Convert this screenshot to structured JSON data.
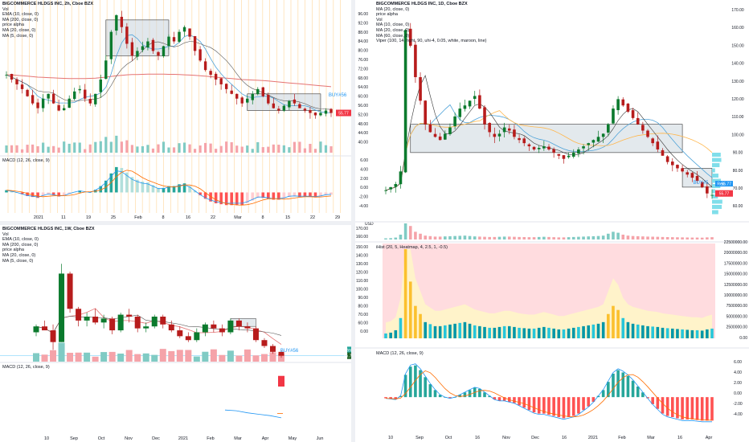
{
  "panels": [
    {
      "id": "p1",
      "title": "BIGCOMMERCE HLDGS INC, 2h, Cboe BZX",
      "legend": [
        "Vol",
        "EMA (10, close, 0)",
        "MA (200, close, 0)",
        "price alpha",
        "MA (20, close, 0)",
        "MA (5, close, 0)"
      ],
      "macd_label": "MACD (12, 26, close, 9)",
      "x_ticks": [
        "2021",
        "11",
        "19",
        "25",
        "Feb",
        "8",
        "16",
        "22",
        "Mar",
        "8",
        "15",
        "22",
        "29"
      ],
      "signal": "BUY#56",
      "last_price": "55.77"
    },
    {
      "id": "p2",
      "title": "BIGCOMMERCE HLDGS INC, 1D, Cboe BZX",
      "legend": [
        "MA (20, close, 0)",
        "price alpha",
        "Vol",
        "MA (10, close, 0)",
        "MA (20, close, 0)",
        "MA (60, close, 0)",
        "Viper (100, 14, right, 90, uhi-4, 0.05, white, maroon, line)"
      ],
      "macd_label": "MACD (12, 26, close, 9)",
      "osc_label": "iHist (20, 5, Heatmap, 4, 2.5, 1, -0.5)",
      "x_ticks": [
        "10",
        "Sep",
        "Oct",
        "16",
        "Nov",
        "Dec",
        "16",
        "2021",
        "Feb",
        "Mar",
        "16",
        "Apr"
      ],
      "left_axis": [
        "96.00",
        "92.00",
        "88.00",
        "84.00",
        "80.00",
        "76.00",
        "72.00",
        "68.00",
        "64.00",
        "60.00",
        "56.00",
        "52.00",
        "48.00",
        "44.00",
        "40.00",
        "6.00",
        "4.00",
        "2.00",
        "0.00",
        "-2.00",
        "-4.00"
      ],
      "right_axis": [
        "170.00",
        "160.00",
        "150.00",
        "140.00",
        "130.00",
        "120.00",
        "110.00",
        "100.00",
        "90.00",
        "80.00",
        "70.00",
        "60.00"
      ],
      "vol_right_axis": [
        "22500000.00",
        "20000000.00",
        "17500000.00",
        "15000000.00",
        "12500000.00",
        "10000000.00",
        "7500000.00",
        "5000000.00",
        "2500000.00",
        "0.00"
      ],
      "vol_left_axis": [
        "170.00",
        "160.00",
        "150.00",
        "140.00",
        "130.00",
        "120.00",
        "110.00",
        "100.00",
        "90.00",
        "80.00",
        "70.00",
        "60.00",
        "0.00"
      ],
      "macd_axis": [
        "6.00",
        "4.00",
        "2.00",
        "0.00",
        "-2.00",
        "-4.00"
      ],
      "signal": "BUY#5",
      "tag_red": "Red",
      "last_price": "55.77",
      "tag_price2": "55.77",
      "usd": "USD"
    },
    {
      "id": "p3",
      "title": "BIGCOMMERCE HLDGS INC, 1W, Cboe BZX",
      "legend": [
        "Vol",
        "EMA (10, close, 0)",
        "MA (200, close, 0)",
        "price alpha",
        "MA (20, close, 0)",
        "MA (5, close, 0)"
      ],
      "macd_label": "MACD (12, 26, close, 9)",
      "x_ticks": [
        "10",
        "Sep",
        "Oct",
        "Nov",
        "Dec",
        "2021",
        "Feb",
        "Mar",
        "Apr",
        "May",
        "Jun"
      ],
      "macd_axis": [
        "0.00",
        "-2.00",
        "-4.00",
        "-6.00",
        "-8.00"
      ],
      "signal": "BUY#56",
      "tag_red": "Red",
      "last_price": "55.77"
    }
  ],
  "colors": {
    "up": "#089981",
    "down": "#f23645",
    "up_solid": "#0b7a2d",
    "down_solid": "#b71c1c",
    "ma_red": "#e57373",
    "ma_blue": "#4fa3d9",
    "ma_orange": "#f5a623",
    "grid": "#f0f3fa",
    "box_fill": "#c8d3dc",
    "macd_line": "#2196f3",
    "signal_line": "#ff6d00",
    "heat_bg": "#ffcdd2",
    "signal_text": "#2196f3"
  },
  "chart_data": [
    {
      "panel": "2h",
      "type": "candlestick",
      "title": "BIGCOMMERCE HLDGS INC, 2h, Cboe BZX",
      "close": [
        72,
        70,
        68,
        66,
        63,
        60,
        58,
        62,
        64,
        60,
        57,
        58,
        62,
        65,
        66,
        62,
        60,
        64,
        70,
        78,
        90,
        97,
        92,
        85,
        80,
        82,
        84,
        86,
        82,
        80,
        84,
        88,
        86,
        90,
        92,
        88,
        82,
        78,
        74,
        72,
        70,
        68,
        66,
        64,
        62,
        60,
        62,
        64,
        66,
        63,
        60,
        58,
        57,
        59,
        61,
        60,
        58,
        57,
        56,
        55,
        56,
        57,
        56
      ],
      "ma200": [
        72,
        72,
        71.8,
        71.6,
        71.4,
        71.2,
        71,
        70.9,
        70.8,
        70.7,
        70.6,
        70.5,
        70.4,
        70.4,
        70.4,
        70.4,
        70.5,
        70.6,
        70.8,
        71,
        71.3,
        71.6,
        71.8,
        72,
        72.1,
        72.1,
        72.2,
        72.3,
        72.3,
        72.3,
        72.3,
        72.2,
        72.2,
        72.1,
        72,
        71.9,
        71.8,
        71.6,
        71.4,
        71.2,
        71,
        70.8,
        70.6,
        70.4,
        70.2,
        70,
        69.9,
        69.8,
        69.7,
        69.6,
        69.4,
        69.2,
        69,
        68.8,
        68.6,
        68.4,
        68.2,
        68,
        67.8,
        67.6,
        67.4,
        67.2,
        67
      ],
      "macd": [
        0.5,
        0.3,
        0,
        -0.4,
        -0.8,
        -1,
        -1.2,
        -0.8,
        -0.4,
        -0.6,
        -0.9,
        -0.8,
        -0.3,
        0.1,
        0.4,
        0.2,
        0,
        0.6,
        1.4,
        2.6,
        4.2,
        5.6,
        5.4,
        4.4,
        3.4,
        2.8,
        2.4,
        2.2,
        1.6,
        1,
        1,
        1.4,
        1.4,
        1.8,
        2,
        1.4,
        0.4,
        -0.6,
        -1.4,
        -2,
        -2.4,
        -2.6,
        -2.8,
        -2.8,
        -2.8,
        -2.8,
        -2.4,
        -1.8,
        -1.2,
        -1.2,
        -1.4,
        -1.6,
        -1.6,
        -1.4,
        -1,
        -0.9,
        -1,
        -1,
        -1,
        -1.1,
        -0.9,
        -0.6,
        -0.5
      ]
    },
    {
      "panel": "1D",
      "type": "candlestick",
      "title": "BIGCOMMERCE HLDGS INC, 1D, Cboe BZX",
      "close": [
        58,
        60,
        62,
        70,
        160,
        150,
        130,
        115,
        100,
        95,
        92,
        90,
        94,
        98,
        105,
        110,
        112,
        115,
        118,
        110,
        100,
        95,
        92,
        94,
        98,
        96,
        92,
        90,
        88,
        86,
        84,
        85,
        86,
        84,
        82,
        80,
        78,
        80,
        82,
        84,
        86,
        88,
        90,
        92,
        94,
        100,
        110,
        116,
        112,
        108,
        104,
        100,
        96,
        92,
        88,
        84,
        80,
        76,
        74,
        72,
        70,
        68,
        66,
        64,
        60,
        56,
        55
      ],
      "volume_m": [
        1.2,
        1.4,
        2,
        5,
        22,
        14,
        8,
        6,
        4,
        3.5,
        3,
        3,
        3.2,
        3.4,
        3.6,
        3.8,
        4,
        3.6,
        3.2,
        3,
        2.8,
        2.6,
        2.6,
        2.8,
        3,
        3,
        2.8,
        2.6,
        2.5,
        2.4,
        2.4,
        2.6,
        2.8,
        2.6,
        2.4,
        2.2,
        2.2,
        2.4,
        2.6,
        2.8,
        3,
        3.2,
        3.4,
        3.6,
        4,
        6,
        8,
        7,
        5,
        4,
        3.6,
        3.4,
        3.2,
        3,
        2.9,
        2.8,
        2.6,
        2.5,
        2.4,
        2.3,
        2.2,
        2.1,
        2,
        2,
        1.9,
        2.2,
        2.4
      ],
      "macd": [
        -0.2,
        -0.3,
        -0.4,
        0.2,
        3.8,
        5.2,
        5.4,
        4.6,
        3.4,
        2.2,
        1.2,
        0.4,
        0,
        -0.2,
        0,
        0.4,
        0.8,
        1.2,
        1.6,
        1.4,
        0.8,
        0.2,
        -0.4,
        -0.6,
        -0.6,
        -0.8,
        -1,
        -1.4,
        -1.8,
        -2.2,
        -2.6,
        -2.8,
        -2.8,
        -3,
        -3.2,
        -3.4,
        -3.6,
        -3.4,
        -3.2,
        -2.8,
        -2.2,
        -1.6,
        -0.8,
        0.2,
        1.2,
        2.6,
        4,
        4.6,
        4.2,
        3.6,
        2.8,
        1.8,
        0.8,
        -0.2,
        -1.2,
        -2,
        -2.8,
        -3.2,
        -3.4,
        -3.6,
        -3.8,
        -3.8,
        -3.8,
        -3.9,
        -4,
        -4,
        -4
      ]
    },
    {
      "panel": "1W",
      "type": "candlestick",
      "title": "BIGCOMMERCE HLDGS INC, 1W, Cboe BZX",
      "ohlc": [
        [
          80,
          88,
          76,
          86
        ],
        [
          86,
          92,
          82,
          82
        ],
        [
          82,
          88,
          62,
          70
        ],
        [
          70,
          150,
          70,
          140
        ],
        [
          140,
          142,
          100,
          104
        ],
        [
          104,
          106,
          86,
          92
        ],
        [
          92,
          100,
          86,
          96
        ],
        [
          96,
          104,
          88,
          90
        ],
        [
          90,
          98,
          84,
          94
        ],
        [
          94,
          96,
          78,
          82
        ],
        [
          82,
          100,
          80,
          98
        ],
        [
          98,
          104,
          90,
          96
        ],
        [
          96,
          98,
          80,
          84
        ],
        [
          84,
          90,
          80,
          86
        ],
        [
          86,
          98,
          84,
          96
        ],
        [
          96,
          98,
          84,
          88
        ],
        [
          88,
          92,
          80,
          82
        ],
        [
          82,
          86,
          74,
          76
        ],
        [
          76,
          80,
          70,
          72
        ],
        [
          72,
          84,
          70,
          80
        ],
        [
          80,
          90,
          76,
          88
        ],
        [
          88,
          92,
          80,
          84
        ],
        [
          84,
          88,
          76,
          80
        ],
        [
          80,
          94,
          78,
          92
        ],
        [
          92,
          94,
          82,
          86
        ],
        [
          86,
          90,
          80,
          84
        ],
        [
          84,
          86,
          70,
          72
        ],
        [
          72,
          74,
          64,
          66
        ],
        [
          66,
          68,
          58,
          60
        ],
        [
          60,
          62,
          54,
          56
        ]
      ],
      "macd": [
        -4.9,
        -5,
        -5.3,
        -5.5,
        -5.7,
        -6
      ]
    }
  ]
}
